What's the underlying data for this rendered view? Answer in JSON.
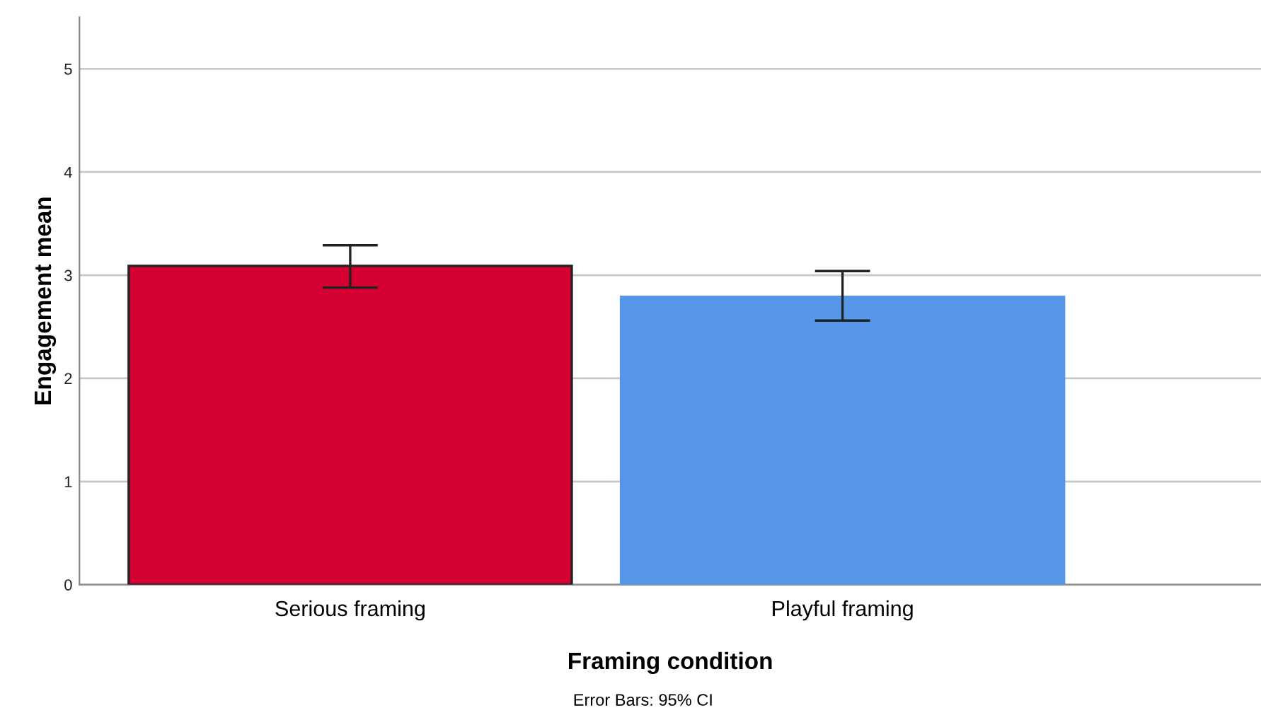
{
  "chart_data": {
    "type": "bar",
    "categories": [
      "Serious framing",
      "Playful framing"
    ],
    "values": [
      3.09,
      2.79
    ],
    "errors": [
      [
        2.88,
        3.29
      ],
      [
        2.56,
        3.04
      ]
    ],
    "colors": [
      "#d50032",
      "#5596e6"
    ],
    "xlabel": "Framing condition",
    "ylabel": "Engagement mean",
    "ylim": [
      0,
      5.5
    ],
    "yticks": [
      0,
      1,
      2,
      3,
      4,
      5
    ],
    "grid": "y",
    "annotations": [
      "Error Bars: 95% CI"
    ]
  }
}
